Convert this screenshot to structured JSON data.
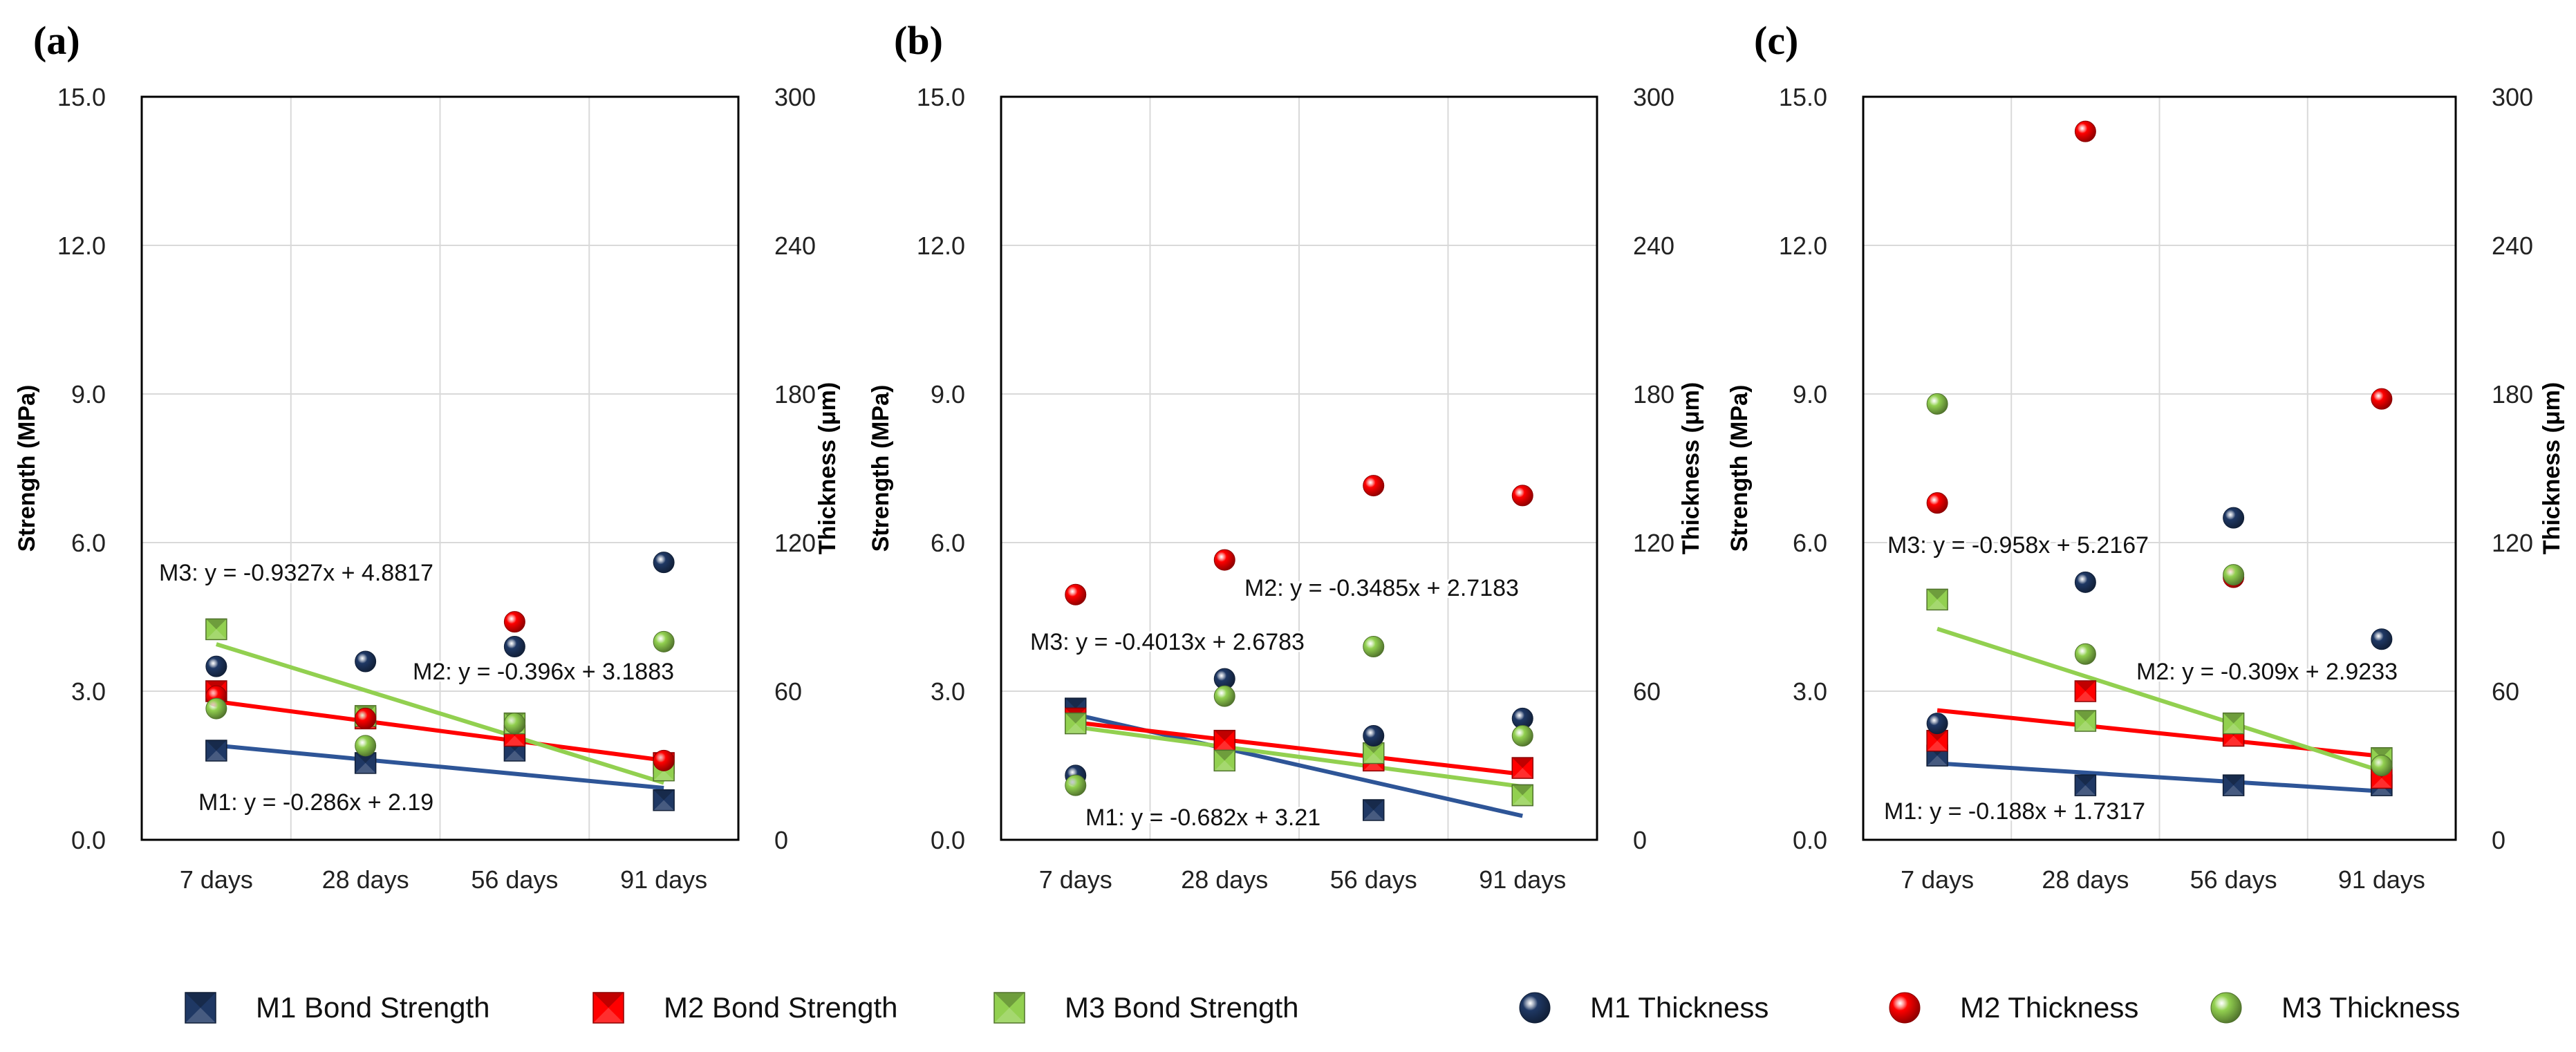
{
  "colors": {
    "m1": "#1f3864",
    "m2": "#ff0000",
    "m3": "#92d050",
    "m1_line": "#2e5597",
    "m2_line": "#ff0000",
    "m3_line": "#92d050"
  },
  "chart_data": [
    {
      "panel_label": "(a)",
      "type": "scatter",
      "categories": [
        "7 days",
        "28 days",
        "56 days",
        "91 days"
      ],
      "ylabel": "Strength (MPa)",
      "y2label": "Thickness (μm)",
      "ylim": [
        0,
        15
      ],
      "y2lim": [
        0,
        300
      ],
      "yticks": [
        "0.0",
        "3.0",
        "6.0",
        "9.0",
        "12.0",
        "15.0"
      ],
      "y2ticks": [
        "0",
        "60",
        "120",
        "180",
        "240",
        "300"
      ],
      "series": [
        {
          "name": "M1 Bond Strength",
          "axis": "left",
          "marker": "square",
          "values": [
            1.8,
            1.55,
            1.8,
            0.8
          ]
        },
        {
          "name": "M2 Bond Strength",
          "axis": "left",
          "marker": "square",
          "values": [
            3.0,
            2.45,
            2.1,
            1.55
          ]
        },
        {
          "name": "M3 Bond Strength",
          "axis": "left",
          "marker": "square",
          "values": [
            4.25,
            2.5,
            2.35,
            1.4
          ]
        },
        {
          "name": "M1 Thickness",
          "axis": "right",
          "marker": "circle",
          "values": [
            70,
            72,
            78,
            112
          ]
        },
        {
          "name": "M2 Thickness",
          "axis": "right",
          "marker": "circle",
          "values": [
            58,
            49,
            88,
            32
          ]
        },
        {
          "name": "M3 Thickness",
          "axis": "right",
          "marker": "circle",
          "values": [
            53,
            38,
            47,
            80
          ]
        }
      ],
      "trendlines": [
        {
          "series": "M1",
          "slope": -0.286,
          "intercept": 2.19,
          "label": "M1: y = -0.286x + 2.19"
        },
        {
          "series": "M2",
          "slope": -0.396,
          "intercept": 3.1883,
          "label": "M2: y = -0.396x + 3.1883"
        },
        {
          "series": "M3",
          "slope": -0.9327,
          "intercept": 4.8817,
          "label": "M3: y = -0.9327x + 4.8817"
        }
      ]
    },
    {
      "panel_label": "(b)",
      "type": "scatter",
      "categories": [
        "7 days",
        "28 days",
        "56 days",
        "91 days"
      ],
      "ylabel": "Strength (MPa)",
      "y2label": "Thickness (μm)",
      "ylim": [
        0,
        15
      ],
      "y2lim": [
        0,
        300
      ],
      "yticks": [
        "0.0",
        "3.0",
        "6.0",
        "9.0",
        "12.0",
        "15.0"
      ],
      "y2ticks": [
        "0",
        "60",
        "120",
        "180",
        "240",
        "300"
      ],
      "series": [
        {
          "name": "M1 Bond Strength",
          "axis": "left",
          "marker": "square",
          "values": [
            2.65,
            1.85,
            0.6,
            0.9
          ]
        },
        {
          "name": "M2 Bond Strength",
          "axis": "left",
          "marker": "square",
          "values": [
            2.45,
            2.0,
            1.6,
            1.45
          ]
        },
        {
          "name": "M3 Bond Strength",
          "axis": "left",
          "marker": "square",
          "values": [
            2.35,
            1.6,
            1.75,
            0.9
          ]
        },
        {
          "name": "M1 Thickness",
          "axis": "right",
          "marker": "circle",
          "values": [
            26,
            65,
            42,
            49
          ]
        },
        {
          "name": "M2 Thickness",
          "axis": "right",
          "marker": "circle",
          "values": [
            99,
            113,
            143,
            139
          ]
        },
        {
          "name": "M3 Thickness",
          "axis": "right",
          "marker": "circle",
          "values": [
            22,
            58,
            78,
            42
          ]
        }
      ],
      "trendlines": [
        {
          "series": "M1",
          "slope": -0.682,
          "intercept": 3.21,
          "label": "M1: y = -0.682x + 3.21"
        },
        {
          "series": "M2",
          "slope": -0.3485,
          "intercept": 2.7183,
          "label": "M2: y = -0.3485x + 2.7183"
        },
        {
          "series": "M3",
          "slope": -0.4013,
          "intercept": 2.6783,
          "label": "M3: y = -0.4013x + 2.6783"
        }
      ]
    },
    {
      "panel_label": "(c)",
      "type": "scatter",
      "categories": [
        "7 days",
        "28 days",
        "56 days",
        "91 days"
      ],
      "ylabel": "Strength (MPa)",
      "y2label": "Thickness (μm)",
      "ylim": [
        0,
        15
      ],
      "y2lim": [
        0,
        300
      ],
      "yticks": [
        "0.0",
        "3.0",
        "6.0",
        "9.0",
        "12.0",
        "15.0"
      ],
      "y2ticks": [
        "0",
        "60",
        "120",
        "180",
        "240",
        "300"
      ],
      "series": [
        {
          "name": "M1 Bond Strength",
          "axis": "left",
          "marker": "square",
          "values": [
            1.7,
            1.1,
            1.1,
            1.1
          ]
        },
        {
          "name": "M2 Bond Strength",
          "axis": "left",
          "marker": "square",
          "values": [
            2.0,
            3.0,
            2.1,
            1.25
          ]
        },
        {
          "name": "M3 Bond Strength",
          "axis": "left",
          "marker": "square",
          "values": [
            4.85,
            2.4,
            2.35,
            1.65
          ]
        },
        {
          "name": "M1 Thickness",
          "axis": "right",
          "marker": "circle",
          "values": [
            47,
            104,
            130,
            81
          ]
        },
        {
          "name": "M2 Thickness",
          "axis": "right",
          "marker": "circle",
          "values": [
            136,
            286,
            106,
            178
          ]
        },
        {
          "name": "M3 Thickness",
          "axis": "right",
          "marker": "circle",
          "values": [
            176,
            75,
            107,
            30
          ]
        }
      ],
      "trendlines": [
        {
          "series": "M1",
          "slope": -0.188,
          "intercept": 1.7317,
          "label": "M1: y = -0.188x + 1.7317"
        },
        {
          "series": "M2",
          "slope": -0.309,
          "intercept": 2.9233,
          "label": "M2: y = -0.309x + 2.9233"
        },
        {
          "series": "M3",
          "slope": -0.958,
          "intercept": 5.2167,
          "label": "M3: y = -0.958x + 5.2167"
        }
      ]
    }
  ],
  "legend": [
    {
      "label": "M1 Bond Strength",
      "key": "m1",
      "marker": "square"
    },
    {
      "label": "M2 Bond Strength",
      "key": "m2",
      "marker": "square"
    },
    {
      "label": "M3 Bond Strength",
      "key": "m3",
      "marker": "square"
    },
    {
      "label": "M1 Thickness",
      "key": "m1",
      "marker": "circle"
    },
    {
      "label": "M2 Thickness",
      "key": "m2",
      "marker": "circle"
    },
    {
      "label": "M3 Thickness",
      "key": "m3",
      "marker": "circle"
    }
  ]
}
